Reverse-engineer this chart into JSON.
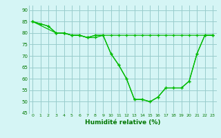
{
  "line1_x": [
    0,
    1,
    2,
    3,
    4,
    5,
    6,
    7,
    8,
    9,
    10,
    11,
    12,
    13,
    14,
    15,
    16,
    17,
    18,
    19,
    20,
    21,
    22,
    23
  ],
  "line1_y": [
    85,
    84,
    83,
    80,
    80,
    79,
    79,
    78,
    78,
    79,
    71,
    66,
    60,
    51,
    51,
    50,
    52,
    56,
    56,
    56,
    59,
    71,
    79,
    79
  ],
  "line2_x": [
    0,
    1,
    2,
    3,
    4,
    5,
    6,
    7,
    8,
    9,
    10,
    11,
    12,
    13,
    14,
    15,
    16,
    17,
    18,
    19,
    20,
    21,
    22,
    23
  ],
  "line2_y": [
    85,
    84,
    83,
    80,
    80,
    79,
    79,
    78,
    79,
    79,
    79,
    79,
    79,
    79,
    79,
    79,
    79,
    79,
    79,
    79,
    79,
    79,
    79,
    79
  ],
  "line3_x": [
    0,
    3,
    4,
    5,
    6,
    7,
    8,
    9,
    10,
    11,
    12,
    13,
    14,
    15,
    16,
    17,
    18,
    19,
    20,
    21,
    22,
    23
  ],
  "line3_y": [
    85,
    80,
    80,
    79,
    79,
    78,
    79,
    79,
    71,
    66,
    60,
    51,
    51,
    50,
    52,
    56,
    56,
    56,
    59,
    71,
    79,
    79
  ],
  "line_color": "#00bb00",
  "bg_color": "#d5f5f5",
  "grid_color": "#99cccc",
  "xlabel": "Humidité relative (%)",
  "xlabel_color": "#007700",
  "tick_color": "#007700",
  "ylim": [
    45,
    92
  ],
  "xlim": [
    -0.5,
    23.5
  ],
  "yticks": [
    45,
    50,
    55,
    60,
    65,
    70,
    75,
    80,
    85,
    90
  ],
  "xticks": [
    0,
    1,
    2,
    3,
    4,
    5,
    6,
    7,
    8,
    9,
    10,
    11,
    12,
    13,
    14,
    15,
    16,
    17,
    18,
    19,
    20,
    21,
    22,
    23
  ]
}
